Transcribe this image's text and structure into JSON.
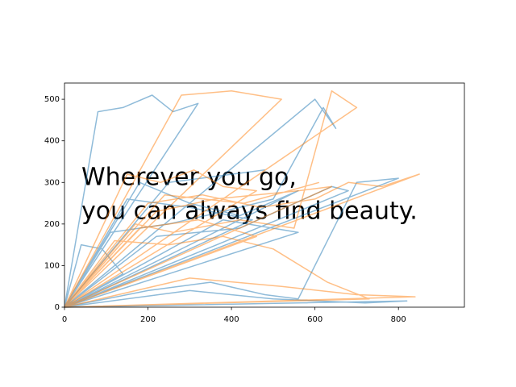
{
  "chart_data": {
    "type": "line",
    "annotation": [
      "Wherever you go,",
      "you can always find beauty."
    ],
    "xlim": [
      0,
      958
    ],
    "xticks": [
      0,
      200,
      400,
      600,
      800
    ],
    "ylim": [
      0,
      539
    ],
    "yticks": [
      0,
      100,
      200,
      300,
      400,
      500
    ],
    "grid": false,
    "series": [
      {
        "color": "#1f77b4",
        "x": [
          0,
          80,
          140,
          210,
          260,
          320,
          0,
          180,
          300,
          420,
          560,
          0,
          110,
          250,
          380,
          500,
          620,
          650,
          600,
          0,
          200,
          350,
          480,
          560,
          700,
          800,
          0,
          150,
          300,
          450,
          0,
          40,
          90,
          140,
          0,
          220,
          420,
          640,
          680,
          0,
          300,
          500,
          720,
          820,
          0,
          380,
          560,
          0,
          250,
          480
        ],
        "values": [
          0,
          470,
          480,
          510,
          470,
          490,
          0,
          300,
          250,
          220,
          280,
          0,
          180,
          200,
          230,
          260,
          480,
          430,
          500,
          0,
          40,
          60,
          30,
          20,
          300,
          310,
          0,
          260,
          240,
          210,
          0,
          150,
          140,
          80,
          0,
          170,
          190,
          290,
          280,
          0,
          40,
          20,
          10,
          15,
          0,
          210,
          180,
          0,
          300,
          330
        ]
      },
      {
        "color": "#ff7f0e",
        "x": [
          0,
          150,
          230,
          310,
          380,
          460,
          0,
          200,
          330,
          470,
          600,
          680,
          760,
          850,
          0,
          170,
          260,
          420,
          550,
          640,
          700,
          0,
          280,
          400,
          520,
          0,
          120,
          250,
          380,
          500,
          630,
          730,
          0,
          300,
          520,
          700,
          840,
          0,
          220,
          360,
          560,
          640,
          0,
          180,
          320,
          460,
          0,
          240,
          430,
          610
        ],
        "values": [
          0,
          320,
          300,
          330,
          290,
          280,
          0,
          250,
          270,
          240,
          260,
          300,
          290,
          320,
          0,
          200,
          180,
          210,
          190,
          520,
          480,
          0,
          510,
          520,
          500,
          0,
          160,
          150,
          170,
          140,
          60,
          20,
          0,
          70,
          50,
          30,
          25,
          0,
          230,
          260,
          280,
          290,
          0,
          190,
          210,
          170,
          0,
          270,
          250,
          300
        ]
      }
    ]
  }
}
